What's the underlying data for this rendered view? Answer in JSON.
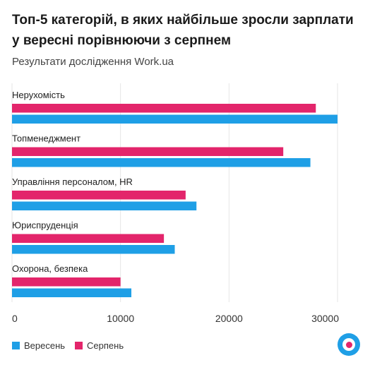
{
  "header": {
    "title": "Топ-5 категорій, в яких найбільше зросли зарплати у вересні порівнюючи з серпнем",
    "subtitle": "Результати дослідження Work.ua"
  },
  "colors": {
    "september": "#1f9fe6",
    "august": "#e3256b",
    "grid": "#e6e6e6",
    "logo_outer": "#1f9fe6",
    "logo_inner": "#e3256b"
  },
  "logo": {
    "icon": "workua-logo-icon"
  },
  "chart_data": {
    "type": "bar",
    "orientation": "horizontal",
    "categories": [
      "Нерухомість",
      "Топменеджмент",
      "Управління персоналом, HR",
      "Юриспруденція",
      "Охорона, безпека"
    ],
    "series": [
      {
        "name": "Серпень",
        "values": [
          28000,
          25000,
          16000,
          14000,
          10000
        ]
      },
      {
        "name": "Вересень",
        "values": [
          30000,
          27500,
          17000,
          15000,
          11000
        ]
      }
    ],
    "xlim": [
      0,
      30000
    ],
    "xticks": [
      0,
      10000,
      20000,
      30000
    ],
    "xtick_labels": [
      "0",
      "10000",
      "20000",
      "30000"
    ],
    "grid": true,
    "legend_placement": "bottom-left",
    "legend": [
      "Вересень",
      "Серпень"
    ]
  }
}
